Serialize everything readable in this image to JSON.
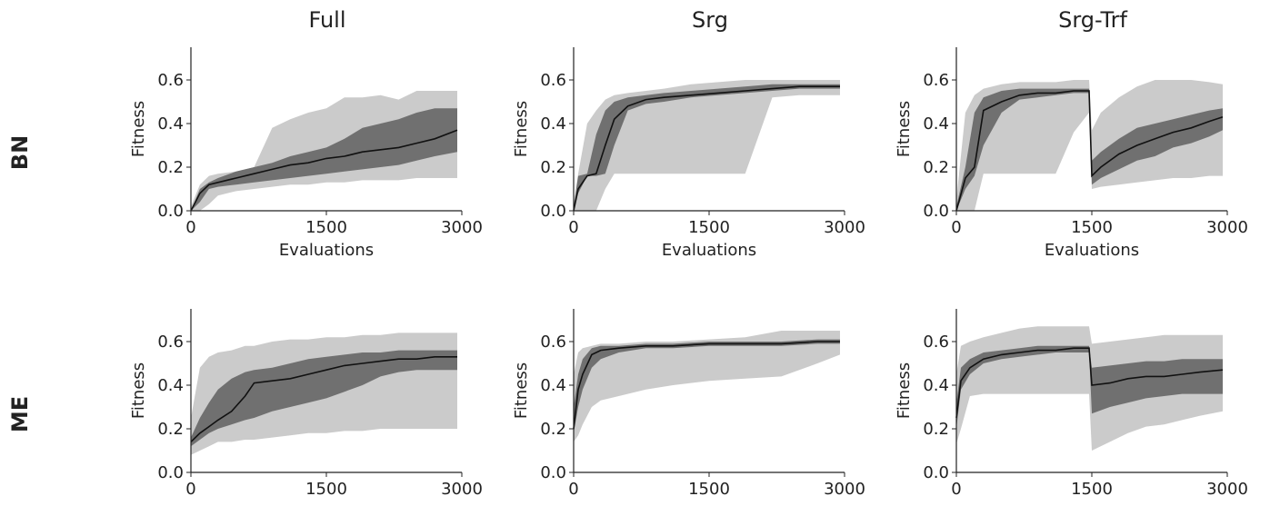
{
  "column_titles": [
    "Full",
    "Srg",
    "Srg-Trf"
  ],
  "row_labels": [
    "BN",
    "ME"
  ],
  "colors": {
    "mean_line": "#111111",
    "band_inner": "#707070",
    "band_outer": "#cbcbcb",
    "axis": "#222222"
  },
  "chart_data": [
    {
      "type": "line",
      "row": "BN",
      "column": "Full",
      "xlabel": "Evaluations",
      "ylabel": "Fitness",
      "xlim": [
        0,
        3000
      ],
      "ylim": [
        0,
        0.75
      ],
      "xticks": [
        0,
        1500,
        3000
      ],
      "yticks": [
        0.0,
        0.2,
        0.4,
        0.6
      ],
      "xtick_labels": [
        "0",
        "1500",
        "3000"
      ],
      "ytick_labels": [
        "0.0",
        "0.2",
        "0.4",
        "0.6"
      ],
      "grid": false,
      "x": [
        0,
        100,
        200,
        300,
        500,
        700,
        900,
        1100,
        1300,
        1500,
        1700,
        1900,
        2100,
        2300,
        2500,
        2700,
        2950
      ],
      "mean": [
        0.0,
        0.08,
        0.12,
        0.13,
        0.15,
        0.17,
        0.19,
        0.21,
        0.22,
        0.24,
        0.25,
        0.27,
        0.28,
        0.29,
        0.31,
        0.33,
        0.37
      ],
      "inner_low": [
        0.0,
        0.04,
        0.1,
        0.11,
        0.12,
        0.13,
        0.14,
        0.15,
        0.16,
        0.17,
        0.18,
        0.19,
        0.2,
        0.21,
        0.23,
        0.25,
        0.27
      ],
      "inner_high": [
        0.0,
        0.1,
        0.13,
        0.15,
        0.18,
        0.2,
        0.22,
        0.25,
        0.27,
        0.29,
        0.33,
        0.38,
        0.4,
        0.42,
        0.45,
        0.47,
        0.47
      ],
      "outer_low": [
        0.0,
        0.0,
        0.03,
        0.07,
        0.09,
        0.1,
        0.11,
        0.12,
        0.12,
        0.13,
        0.13,
        0.14,
        0.14,
        0.14,
        0.15,
        0.15,
        0.15
      ],
      "outer_high": [
        0.02,
        0.12,
        0.16,
        0.17,
        0.18,
        0.2,
        0.38,
        0.42,
        0.45,
        0.47,
        0.52,
        0.52,
        0.53,
        0.51,
        0.55,
        0.55,
        0.55
      ]
    },
    {
      "type": "line",
      "row": "BN",
      "column": "Srg",
      "xlabel": "Evaluations",
      "ylabel": "Fitness",
      "xlim": [
        0,
        3000
      ],
      "ylim": [
        0,
        0.75
      ],
      "xticks": [
        0,
        1500,
        3000
      ],
      "yticks": [
        0.0,
        0.2,
        0.4,
        0.6
      ],
      "xtick_labels": [
        "0",
        "1500",
        "3000"
      ],
      "ytick_labels": [
        "0.0",
        "0.2",
        "0.4",
        "0.6"
      ],
      "grid": false,
      "x": [
        0,
        50,
        150,
        250,
        350,
        450,
        600,
        800,
        1000,
        1300,
        1600,
        1900,
        2200,
        2500,
        2950
      ],
      "mean": [
        0.0,
        0.1,
        0.16,
        0.17,
        0.3,
        0.42,
        0.48,
        0.51,
        0.52,
        0.53,
        0.54,
        0.55,
        0.56,
        0.57,
        0.57
      ],
      "inner_low": [
        0.0,
        0.08,
        0.16,
        0.16,
        0.17,
        0.3,
        0.46,
        0.49,
        0.5,
        0.52,
        0.53,
        0.54,
        0.55,
        0.56,
        0.56
      ],
      "inner_high": [
        0.02,
        0.16,
        0.17,
        0.35,
        0.46,
        0.5,
        0.52,
        0.53,
        0.54,
        0.55,
        0.56,
        0.57,
        0.58,
        0.58,
        0.58
      ],
      "outer_low": [
        0.0,
        0.0,
        0.0,
        0.0,
        0.1,
        0.17,
        0.17,
        0.17,
        0.17,
        0.17,
        0.17,
        0.17,
        0.52,
        0.53,
        0.53
      ],
      "outer_high": [
        0.03,
        0.17,
        0.4,
        0.46,
        0.51,
        0.53,
        0.54,
        0.55,
        0.56,
        0.58,
        0.59,
        0.6,
        0.6,
        0.6,
        0.6
      ]
    },
    {
      "type": "line",
      "row": "BN",
      "column": "Srg-Trf",
      "xlabel": "Evaluations",
      "ylabel": "Fitness",
      "xlim": [
        0,
        3000
      ],
      "ylim": [
        0,
        0.75
      ],
      "xticks": [
        0,
        1500,
        3000
      ],
      "yticks": [
        0.0,
        0.2,
        0.4,
        0.6
      ],
      "xtick_labels": [
        "0",
        "1500",
        "3000"
      ],
      "ytick_labels": [
        "0.0",
        "0.2",
        "0.4",
        "0.6"
      ],
      "grid": false,
      "x": [
        0,
        100,
        200,
        300,
        500,
        700,
        900,
        1100,
        1300,
        1470,
        1500,
        1600,
        1800,
        2000,
        2200,
        2400,
        2600,
        2800,
        2950
      ],
      "mean": [
        0.0,
        0.15,
        0.2,
        0.46,
        0.5,
        0.53,
        0.54,
        0.54,
        0.55,
        0.55,
        0.16,
        0.2,
        0.26,
        0.3,
        0.33,
        0.36,
        0.38,
        0.41,
        0.43
      ],
      "inner_low": [
        0.0,
        0.1,
        0.16,
        0.3,
        0.45,
        0.51,
        0.52,
        0.53,
        0.54,
        0.54,
        0.12,
        0.15,
        0.19,
        0.23,
        0.25,
        0.29,
        0.31,
        0.34,
        0.37
      ],
      "inner_high": [
        0.02,
        0.2,
        0.45,
        0.52,
        0.55,
        0.56,
        0.56,
        0.56,
        0.56,
        0.56,
        0.23,
        0.27,
        0.33,
        0.38,
        0.4,
        0.42,
        0.44,
        0.46,
        0.47
      ],
      "outer_low": [
        0.0,
        0.0,
        0.0,
        0.17,
        0.17,
        0.17,
        0.17,
        0.17,
        0.36,
        0.45,
        0.1,
        0.11,
        0.12,
        0.13,
        0.14,
        0.15,
        0.15,
        0.16,
        0.16
      ],
      "outer_high": [
        0.05,
        0.45,
        0.53,
        0.56,
        0.58,
        0.59,
        0.59,
        0.59,
        0.6,
        0.6,
        0.37,
        0.45,
        0.52,
        0.57,
        0.6,
        0.6,
        0.6,
        0.59,
        0.58
      ]
    },
    {
      "type": "line",
      "row": "ME",
      "column": "Full",
      "xlabel": "",
      "ylabel": "Fitness",
      "xlim": [
        0,
        3000
      ],
      "ylim": [
        0,
        0.75
      ],
      "xticks": [
        0,
        1500,
        3000
      ],
      "yticks": [
        0.0,
        0.2,
        0.4,
        0.6
      ],
      "xtick_labels": [
        "0",
        "1500",
        "3000"
      ],
      "ytick_labels": [
        "0.0",
        "0.2",
        "0.4",
        "0.6"
      ],
      "grid": false,
      "x": [
        0,
        100,
        200,
        300,
        450,
        600,
        700,
        900,
        1100,
        1300,
        1500,
        1700,
        1900,
        2100,
        2300,
        2500,
        2700,
        2950
      ],
      "mean": [
        0.14,
        0.18,
        0.21,
        0.24,
        0.28,
        0.35,
        0.41,
        0.42,
        0.43,
        0.45,
        0.47,
        0.49,
        0.5,
        0.51,
        0.52,
        0.52,
        0.53,
        0.53
      ],
      "inner_low": [
        0.12,
        0.15,
        0.18,
        0.2,
        0.22,
        0.24,
        0.25,
        0.28,
        0.3,
        0.32,
        0.34,
        0.37,
        0.4,
        0.44,
        0.46,
        0.47,
        0.47,
        0.47
      ],
      "inner_high": [
        0.16,
        0.25,
        0.32,
        0.38,
        0.43,
        0.46,
        0.47,
        0.48,
        0.5,
        0.52,
        0.53,
        0.54,
        0.55,
        0.55,
        0.56,
        0.56,
        0.56,
        0.56
      ],
      "outer_low": [
        0.08,
        0.1,
        0.12,
        0.14,
        0.14,
        0.15,
        0.15,
        0.16,
        0.17,
        0.18,
        0.18,
        0.19,
        0.19,
        0.2,
        0.2,
        0.2,
        0.2,
        0.2
      ],
      "outer_high": [
        0.25,
        0.48,
        0.53,
        0.55,
        0.56,
        0.58,
        0.58,
        0.6,
        0.61,
        0.61,
        0.62,
        0.62,
        0.63,
        0.63,
        0.64,
        0.64,
        0.64,
        0.64
      ]
    },
    {
      "type": "line",
      "row": "ME",
      "column": "Srg",
      "xlabel": "",
      "ylabel": "Fitness",
      "xlim": [
        0,
        3000
      ],
      "ylim": [
        0,
        0.75
      ],
      "xticks": [
        0,
        1500,
        3000
      ],
      "yticks": [
        0.0,
        0.2,
        0.4,
        0.6
      ],
      "xtick_labels": [
        "0",
        "1500",
        "3000"
      ],
      "ytick_labels": [
        "0.0",
        "0.2",
        "0.4",
        "0.6"
      ],
      "grid": false,
      "x": [
        0,
        50,
        100,
        200,
        300,
        500,
        800,
        1100,
        1500,
        1900,
        2300,
        2700,
        2950
      ],
      "mean": [
        0.2,
        0.38,
        0.45,
        0.54,
        0.56,
        0.57,
        0.58,
        0.58,
        0.59,
        0.59,
        0.59,
        0.6,
        0.6
      ],
      "inner_low": [
        0.18,
        0.3,
        0.38,
        0.48,
        0.52,
        0.55,
        0.57,
        0.57,
        0.58,
        0.58,
        0.58,
        0.59,
        0.59
      ],
      "inner_high": [
        0.3,
        0.45,
        0.52,
        0.57,
        0.58,
        0.58,
        0.59,
        0.59,
        0.6,
        0.6,
        0.6,
        0.61,
        0.61
      ],
      "outer_low": [
        0.14,
        0.17,
        0.22,
        0.3,
        0.33,
        0.35,
        0.38,
        0.4,
        0.42,
        0.43,
        0.44,
        0.5,
        0.54
      ],
      "outer_high": [
        0.45,
        0.55,
        0.57,
        0.58,
        0.59,
        0.59,
        0.6,
        0.6,
        0.61,
        0.62,
        0.65,
        0.65,
        0.65
      ]
    },
    {
      "type": "line",
      "row": "ME",
      "column": "Srg-Trf",
      "xlabel": "",
      "ylabel": "Fitness",
      "xlim": [
        0,
        3000
      ],
      "ylim": [
        0,
        0.75
      ],
      "xticks": [
        0,
        1500,
        3000
      ],
      "yticks": [
        0.0,
        0.2,
        0.4,
        0.6
      ],
      "xtick_labels": [
        "0",
        "1500",
        "3000"
      ],
      "ytick_labels": [
        "0.0",
        "0.2",
        "0.4",
        "0.6"
      ],
      "grid": false,
      "x": [
        0,
        50,
        150,
        300,
        500,
        700,
        900,
        1100,
        1300,
        1470,
        1500,
        1700,
        1900,
        2100,
        2300,
        2500,
        2700,
        2950
      ],
      "mean": [
        0.25,
        0.42,
        0.48,
        0.52,
        0.54,
        0.55,
        0.56,
        0.56,
        0.57,
        0.57,
        0.4,
        0.41,
        0.43,
        0.44,
        0.44,
        0.45,
        0.46,
        0.47
      ],
      "inner_low": [
        0.2,
        0.38,
        0.45,
        0.5,
        0.52,
        0.53,
        0.54,
        0.55,
        0.55,
        0.55,
        0.27,
        0.3,
        0.32,
        0.34,
        0.35,
        0.36,
        0.36,
        0.36
      ],
      "inner_high": [
        0.32,
        0.48,
        0.52,
        0.55,
        0.56,
        0.57,
        0.58,
        0.58,
        0.58,
        0.58,
        0.48,
        0.49,
        0.5,
        0.51,
        0.51,
        0.52,
        0.52,
        0.52
      ],
      "outer_low": [
        0.13,
        0.2,
        0.35,
        0.36,
        0.36,
        0.36,
        0.36,
        0.36,
        0.36,
        0.36,
        0.1,
        0.14,
        0.18,
        0.21,
        0.22,
        0.24,
        0.26,
        0.28
      ],
      "outer_high": [
        0.45,
        0.58,
        0.6,
        0.62,
        0.64,
        0.66,
        0.67,
        0.67,
        0.67,
        0.67,
        0.59,
        0.6,
        0.61,
        0.62,
        0.63,
        0.63,
        0.63,
        0.63
      ]
    }
  ]
}
